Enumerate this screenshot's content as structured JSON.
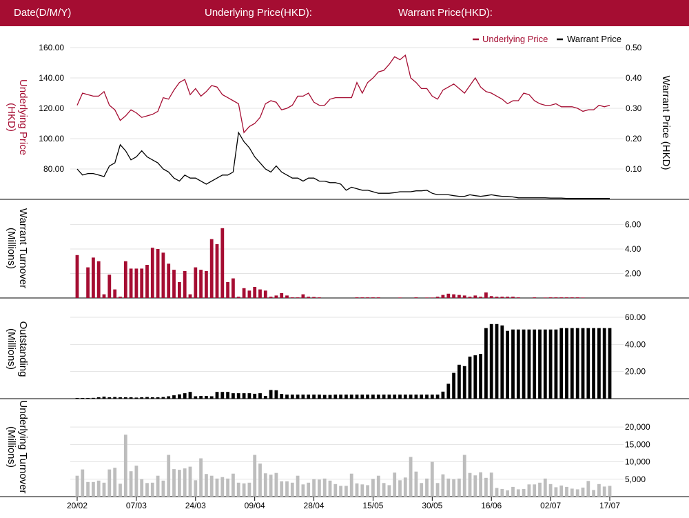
{
  "header": {
    "date_label": "Date(D/M/Y)",
    "underlying_label": "Underlying Price(HKD):",
    "warrant_label": "Warrant Price(HKD):"
  },
  "colors": {
    "underlying": "#a50d32",
    "warrant": "#000000",
    "underlying_turnover": "#bdbdbd",
    "grid": "#e3e3e3",
    "header_bg": "#a50d32"
  },
  "legend": {
    "underlying": "Underlying Price",
    "warrant": "Warrant Price"
  },
  "x_ticks": [
    "20/02",
    "07/03",
    "24/03",
    "09/04",
    "28/04",
    "15/05",
    "30/05",
    "16/06",
    "02/07",
    "17/07"
  ],
  "chart_data": [
    {
      "type": "line",
      "panel": "price",
      "ylabel_left": "Underlying Price (HKD)",
      "ylabel_right": "Warrant  Price (HKD)",
      "y_ticks_left": [
        "80.00",
        "100.00",
        "120.00",
        "140.00",
        "160.00"
      ],
      "y_ticks_right": [
        "0.10",
        "0.20",
        "0.30",
        "0.40",
        "0.50"
      ],
      "ylim_left": [
        60,
        165
      ],
      "ylim_right": [
        0,
        0.525
      ],
      "legend_position": "top-right",
      "grid": true,
      "series": [
        {
          "name": "Underlying Price",
          "axis": "left",
          "values": [
            122,
            130,
            129,
            128,
            128,
            131,
            122,
            119,
            112,
            115,
            119,
            117,
            114,
            115,
            116,
            118,
            127,
            126,
            132,
            137,
            139,
            129,
            133,
            128,
            131,
            135,
            134,
            129,
            127,
            125,
            123,
            104,
            108,
            110,
            114,
            123,
            125,
            124,
            119,
            120,
            122,
            128,
            128,
            130,
            124,
            122,
            122,
            126,
            127,
            127,
            127,
            127,
            137,
            130,
            137,
            140,
            144,
            145,
            149,
            154,
            152,
            155,
            140,
            137,
            133,
            133,
            128,
            126,
            132,
            134,
            136,
            133,
            130,
            135,
            140,
            134,
            131,
            130,
            128,
            126,
            123,
            125,
            125,
            130,
            129,
            125,
            123,
            122,
            122,
            123,
            121,
            121,
            121,
            120,
            118,
            119,
            119,
            122,
            121,
            122
          ]
        },
        {
          "name": "Warrant Price",
          "axis": "right",
          "values": [
            0.1,
            0.08,
            0.085,
            0.085,
            0.08,
            0.075,
            0.11,
            0.12,
            0.18,
            0.16,
            0.13,
            0.14,
            0.16,
            0.14,
            0.13,
            0.12,
            0.1,
            0.09,
            0.07,
            0.06,
            0.08,
            0.07,
            0.07,
            0.06,
            0.05,
            0.06,
            0.07,
            0.08,
            0.08,
            0.09,
            0.22,
            0.19,
            0.17,
            0.14,
            0.12,
            0.1,
            0.09,
            0.11,
            0.09,
            0.08,
            0.07,
            0.07,
            0.06,
            0.07,
            0.07,
            0.06,
            0.06,
            0.055,
            0.055,
            0.05,
            0.03,
            0.04,
            0.035,
            0.03,
            0.03,
            0.025,
            0.02,
            0.02,
            0.02,
            0.022,
            0.025,
            0.025,
            0.025,
            0.028,
            0.028,
            0.03,
            0.02,
            0.015,
            0.015,
            0.015,
            0.012,
            0.01,
            0.01,
            0.015,
            0.012,
            0.01,
            0.012,
            0.015,
            0.012,
            0.01,
            0.01,
            0.008,
            0.005,
            0.005,
            0.005,
            0.005,
            0.005,
            0.005,
            0.004,
            0.004,
            0.004,
            0.003,
            0.003,
            0.003,
            0.003,
            0.003,
            0.003,
            0.003,
            0.003,
            0.003
          ]
        }
      ]
    },
    {
      "type": "bar",
      "panel": "warrant_turnover",
      "ylabel": "Warrant  Turnover (Millions)",
      "y_ticks": [
        "2.00",
        "4.00",
        "6.00"
      ],
      "ylim": [
        0,
        6.7
      ],
      "values": [
        3.5,
        0,
        2.5,
        3.3,
        3,
        0.3,
        1.9,
        0.7,
        0.1,
        3,
        2.4,
        2.4,
        2.4,
        2.7,
        4.1,
        4,
        3.7,
        2.8,
        2.3,
        1.3,
        2.2,
        0.3,
        2.5,
        2.3,
        2.2,
        4.8,
        4.4,
        5.7,
        1.3,
        1.6,
        0.1,
        0.8,
        0.6,
        0.9,
        0.7,
        0.6,
        0.1,
        0.2,
        0.4,
        0.2,
        0.05,
        0.05,
        0.3,
        0.1,
        0.08,
        0.05,
        0,
        0,
        0,
        0,
        0,
        0,
        0.05,
        0.05,
        0.05,
        0.05,
        0.05,
        0,
        0,
        0,
        0.04,
        0,
        0,
        0.05,
        0,
        0.04,
        0.04,
        0.1,
        0.25,
        0.35,
        0.3,
        0.25,
        0.2,
        0.1,
        0.2,
        0.1,
        0.45,
        0.15,
        0.1,
        0.1,
        0.1,
        0.1,
        0.05,
        0,
        0,
        0.05,
        0,
        0.04,
        0.05,
        0.05,
        0.05,
        0.05,
        0.05,
        0.05,
        0.04,
        0,
        0,
        0,
        0,
        0
      ]
    },
    {
      "type": "bar",
      "panel": "outstanding",
      "ylabel": "Outstanding (Millions)",
      "y_ticks": [
        "20.00",
        "40.00",
        "60.00"
      ],
      "ylim": [
        0,
        60
      ],
      "values": [
        0.5,
        0.5,
        0.5,
        0.6,
        1,
        1.5,
        1,
        1.2,
        1,
        1,
        1,
        0.8,
        1,
        1.2,
        1,
        1,
        1.2,
        1.8,
        2.5,
        3.2,
        4,
        5,
        1.8,
        2,
        2,
        1.8,
        5,
        5,
        5,
        4,
        4,
        4,
        4,
        3.6,
        4,
        2,
        6.4,
        6.2,
        3.5,
        3,
        3,
        3,
        3,
        3,
        3,
        3,
        2.8,
        2.8,
        3,
        3,
        3,
        3,
        3,
        3,
        3,
        3,
        3,
        3,
        3,
        3,
        3,
        3,
        3,
        3,
        3,
        3,
        3,
        3,
        5.2,
        11,
        19,
        25,
        24,
        31,
        32,
        33,
        52,
        55,
        55,
        54,
        50,
        51,
        51,
        51,
        51,
        51,
        51,
        51,
        51,
        51,
        52,
        52,
        52,
        52,
        52,
        52,
        52,
        52,
        52,
        52
      ]
    },
    {
      "type": "bar",
      "panel": "underlying_turnover",
      "ylabel": "Underlying Turnover (Millions)",
      "y_ticks": [
        "5,000",
        "10,000",
        "15,000",
        "20,000"
      ],
      "ylim": [
        0,
        22000
      ],
      "values": [
        6000,
        7800,
        4200,
        4200,
        4600,
        4000,
        7800,
        8300,
        3700,
        17800,
        7300,
        8900,
        5000,
        3900,
        4000,
        6000,
        4600,
        12000,
        7900,
        7700,
        8100,
        8600,
        4700,
        11000,
        6500,
        6000,
        5200,
        5600,
        5200,
        6600,
        4000,
        3800,
        4000,
        12000,
        9500,
        6700,
        6300,
        6800,
        4400,
        4400,
        4000,
        6000,
        3500,
        4000,
        5000,
        4900,
        5200,
        4600,
        3600,
        3100,
        3100,
        6600,
        3800,
        3500,
        3300,
        5100,
        6000,
        3900,
        3300,
        6900,
        4700,
        5500,
        11400,
        7200,
        3900,
        5200,
        10000,
        3900,
        6400,
        5200,
        5000,
        5200,
        12000,
        6800,
        6100,
        7000,
        5400,
        6900,
        2500,
        2200,
        1800,
        2800,
        2100,
        2200,
        3500,
        3500,
        4000,
        5200,
        3600,
        2700,
        3200,
        2800,
        2300,
        2100,
        2600,
        4500,
        1900,
        3600,
        2900,
        3100
      ]
    }
  ]
}
